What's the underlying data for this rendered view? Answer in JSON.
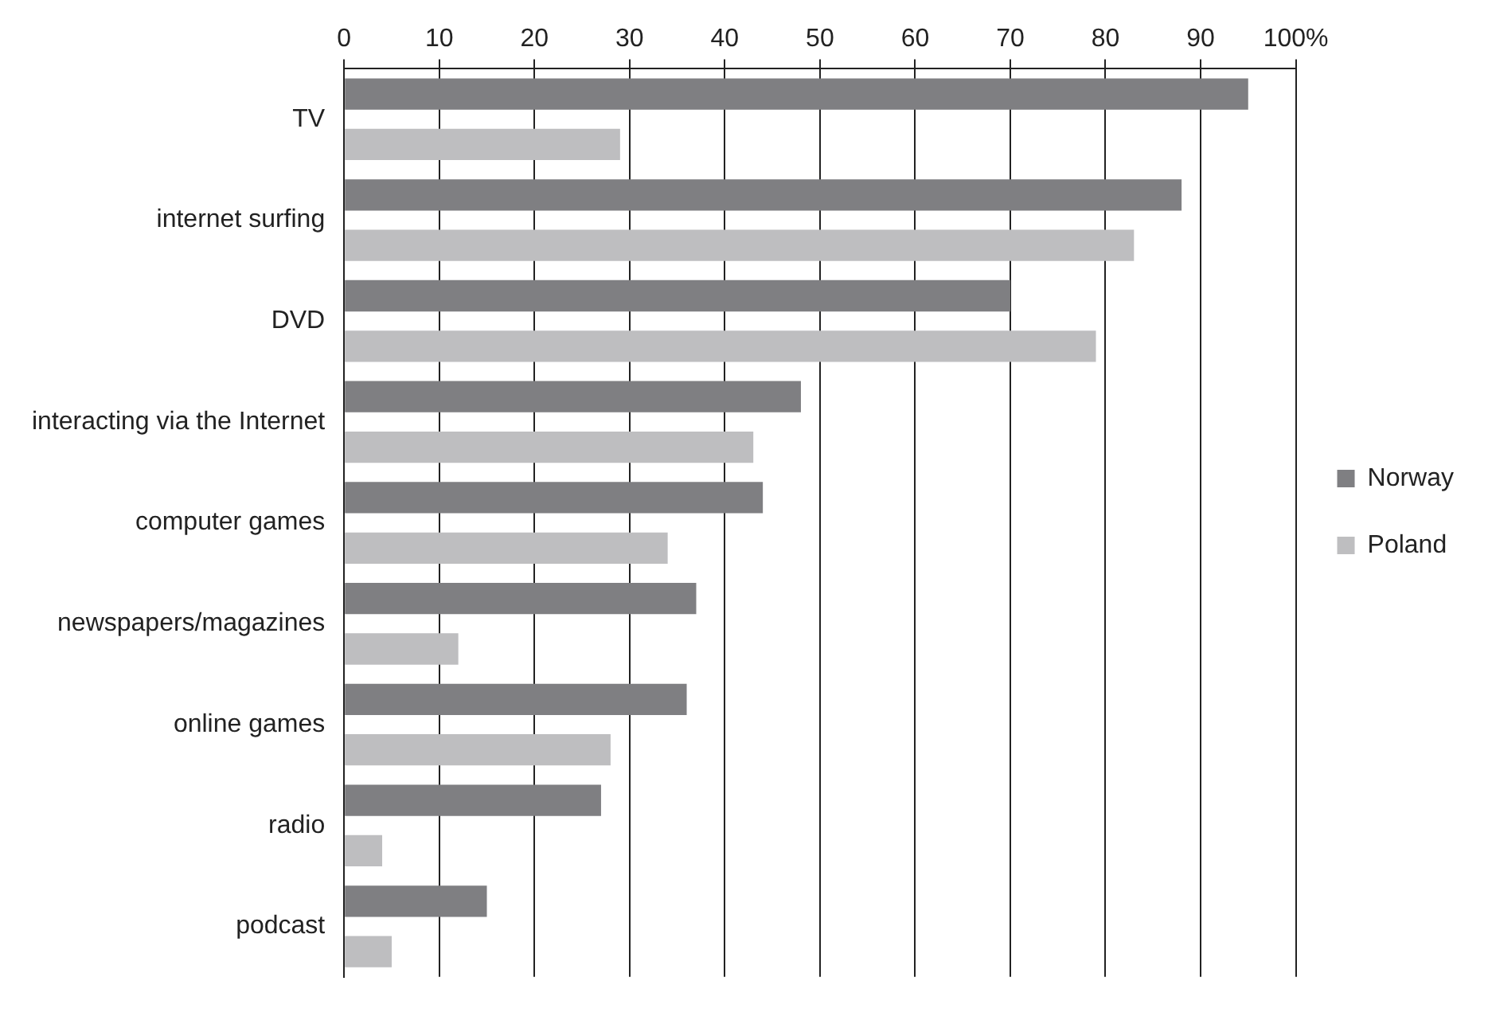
{
  "chart_data": {
    "type": "bar",
    "orientation": "horizontal",
    "categories": [
      "TV",
      "internet surfing",
      "DVD",
      "interacting via the Internet",
      "computer games",
      "newspapers/magazines",
      "online games",
      "radio",
      "podcast"
    ],
    "series": [
      {
        "name": "Norway",
        "color": "#7f7f82",
        "values": [
          95,
          88,
          70,
          48,
          44,
          37,
          36,
          27,
          15
        ]
      },
      {
        "name": "Poland",
        "color": "#bebec0",
        "values": [
          29,
          83,
          79,
          43,
          34,
          12,
          28,
          4,
          5
        ]
      }
    ],
    "xlim": [
      0,
      100
    ],
    "xticks": [
      0,
      10,
      20,
      30,
      40,
      50,
      60,
      70,
      80,
      90,
      {
        "value": 100,
        "label": "100%"
      }
    ],
    "grid": "x",
    "legend": "right"
  }
}
